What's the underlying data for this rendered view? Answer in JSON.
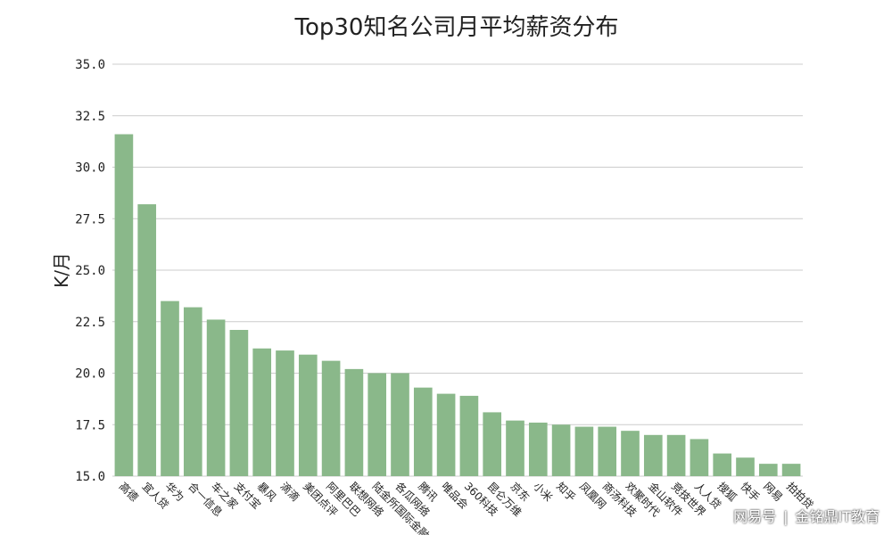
{
  "chart_data": {
    "type": "bar",
    "title": "Top30知名公司月平均薪资分布",
    "xlabel": "",
    "ylabel": "K/月",
    "ylim": [
      15.0,
      35.0
    ],
    "yticks": [
      "15.0",
      "17.5",
      "20.0",
      "22.5",
      "25.0",
      "27.5",
      "30.0",
      "32.5",
      "35.0"
    ],
    "grid": true,
    "bar_color": "#8ab88a",
    "categories": [
      "高德",
      "宜人贷",
      "华为",
      "合一信息",
      "车之家",
      "支付宝",
      "暴风",
      "滴滴",
      "美团点评",
      "阿里巴巴",
      "联想网络",
      "陆金所国际金融",
      "各瓜网络",
      "腾讯",
      "唯品会",
      "360科技",
      "昆仑万维",
      "京东",
      "小米",
      "知乎",
      "凤凰网",
      "商汤科技",
      "欢聚时代",
      "金山软件",
      "竞技世界",
      "人人贷",
      "搜狐",
      "快手",
      "网易",
      "拍拍贷"
    ],
    "values": [
      31.6,
      28.2,
      23.5,
      23.2,
      22.6,
      22.1,
      21.2,
      21.1,
      20.9,
      20.6,
      20.2,
      20.0,
      20.0,
      19.3,
      19.0,
      18.9,
      18.1,
      17.7,
      17.6,
      17.5,
      17.4,
      17.4,
      17.2,
      17.0,
      17.0,
      16.8,
      16.1,
      15.9,
      15.6,
      15.6
    ]
  },
  "watermark": {
    "left": "网易号",
    "right": "金铭鼎IT教育"
  }
}
